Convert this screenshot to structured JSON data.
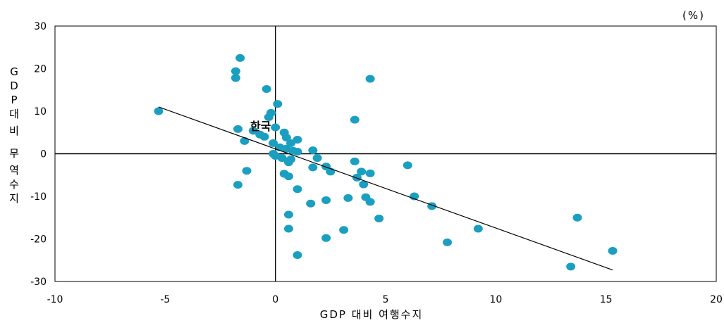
{
  "chart_data": {
    "type": "scatter",
    "unit_label": "(%)",
    "xlabel": "GDP 대비 여행수지",
    "ylabel": "GDP대비 무역수지",
    "xlim": [
      -10,
      20
    ],
    "ylim": [
      -30,
      30
    ],
    "xticks": [
      "-10",
      "-5",
      "0",
      "5",
      "10",
      "15",
      "20"
    ],
    "yticks": [
      "30",
      "20",
      "10",
      "0",
      "-10",
      "-20",
      "-30"
    ],
    "xtick_values": [
      -10,
      -5,
      0,
      5,
      10,
      15,
      20
    ],
    "ytick_values": [
      30,
      20,
      10,
      0,
      -10,
      -20,
      -30
    ],
    "marker_color": "#1a9fc0",
    "line_color": "#000000",
    "trendline": {
      "x": [
        -5.3,
        15.3
      ],
      "y": [
        11.0,
        -27.3
      ]
    },
    "annotation": {
      "text": "한국",
      "x": -0.2,
      "y": 6.5
    },
    "points": [
      {
        "x": -5.3,
        "y": 10.0
      },
      {
        "x": -1.6,
        "y": 22.5
      },
      {
        "x": -1.8,
        "y": 19.4
      },
      {
        "x": -1.8,
        "y": 17.8
      },
      {
        "x": -0.4,
        "y": 15.2
      },
      {
        "x": 4.3,
        "y": 17.6
      },
      {
        "x": 0.1,
        "y": 11.7
      },
      {
        "x": -0.2,
        "y": 9.6
      },
      {
        "x": -0.3,
        "y": 8.6
      },
      {
        "x": 3.6,
        "y": 8.0
      },
      {
        "x": -1.7,
        "y": 5.8
      },
      {
        "x": -1.0,
        "y": 5.4
      },
      {
        "x": -0.7,
        "y": 4.5
      },
      {
        "x": -0.5,
        "y": 4.0
      },
      {
        "x": 0.0,
        "y": 6.2
      },
      {
        "x": 0.4,
        "y": 5.0
      },
      {
        "x": -0.1,
        "y": 2.5
      },
      {
        "x": 0.5,
        "y": 3.8
      },
      {
        "x": 0.7,
        "y": 2.5
      },
      {
        "x": 1.0,
        "y": 3.3
      },
      {
        "x": -1.4,
        "y": 3.0
      },
      {
        "x": 0.2,
        "y": 1.5
      },
      {
        "x": 0.5,
        "y": 1.2
      },
      {
        "x": 0.8,
        "y": 0.7
      },
      {
        "x": 1.0,
        "y": 0.5
      },
      {
        "x": -0.1,
        "y": 0.0
      },
      {
        "x": 0.0,
        "y": -0.5
      },
      {
        "x": 0.3,
        "y": -1.0
      },
      {
        "x": 0.6,
        "y": -2.0
      },
      {
        "x": 0.7,
        "y": -1.3
      },
      {
        "x": 1.7,
        "y": 0.8
      },
      {
        "x": 1.9,
        "y": -1.0
      },
      {
        "x": 1.7,
        "y": -3.2
      },
      {
        "x": 2.3,
        "y": -3.0
      },
      {
        "x": 2.5,
        "y": -4.2
      },
      {
        "x": -1.3,
        "y": -4.0
      },
      {
        "x": 0.4,
        "y": -4.7
      },
      {
        "x": 0.6,
        "y": -5.3
      },
      {
        "x": 3.6,
        "y": -1.8
      },
      {
        "x": 3.9,
        "y": -4.2
      },
      {
        "x": 4.3,
        "y": -4.6
      },
      {
        "x": 3.7,
        "y": -5.6
      },
      {
        "x": 4.0,
        "y": -7.2
      },
      {
        "x": -1.7,
        "y": -7.3
      },
      {
        "x": 1.0,
        "y": -8.3
      },
      {
        "x": 6.0,
        "y": -2.7
      },
      {
        "x": 6.3,
        "y": -10.0
      },
      {
        "x": 4.1,
        "y": -10.2
      },
      {
        "x": 4.3,
        "y": -11.3
      },
      {
        "x": 3.3,
        "y": -10.4
      },
      {
        "x": 2.3,
        "y": -10.9
      },
      {
        "x": 1.6,
        "y": -11.7
      },
      {
        "x": 7.1,
        "y": -12.3
      },
      {
        "x": 0.6,
        "y": -14.3
      },
      {
        "x": 0.6,
        "y": -17.6
      },
      {
        "x": 3.1,
        "y": -17.9
      },
      {
        "x": 4.7,
        "y": -15.2
      },
      {
        "x": 9.2,
        "y": -17.6
      },
      {
        "x": 13.7,
        "y": -15.0
      },
      {
        "x": 2.3,
        "y": -19.8
      },
      {
        "x": 7.8,
        "y": -20.8
      },
      {
        "x": 1.0,
        "y": -23.8
      },
      {
        "x": 15.3,
        "y": -22.8
      },
      {
        "x": 13.4,
        "y": -26.5
      }
    ]
  }
}
